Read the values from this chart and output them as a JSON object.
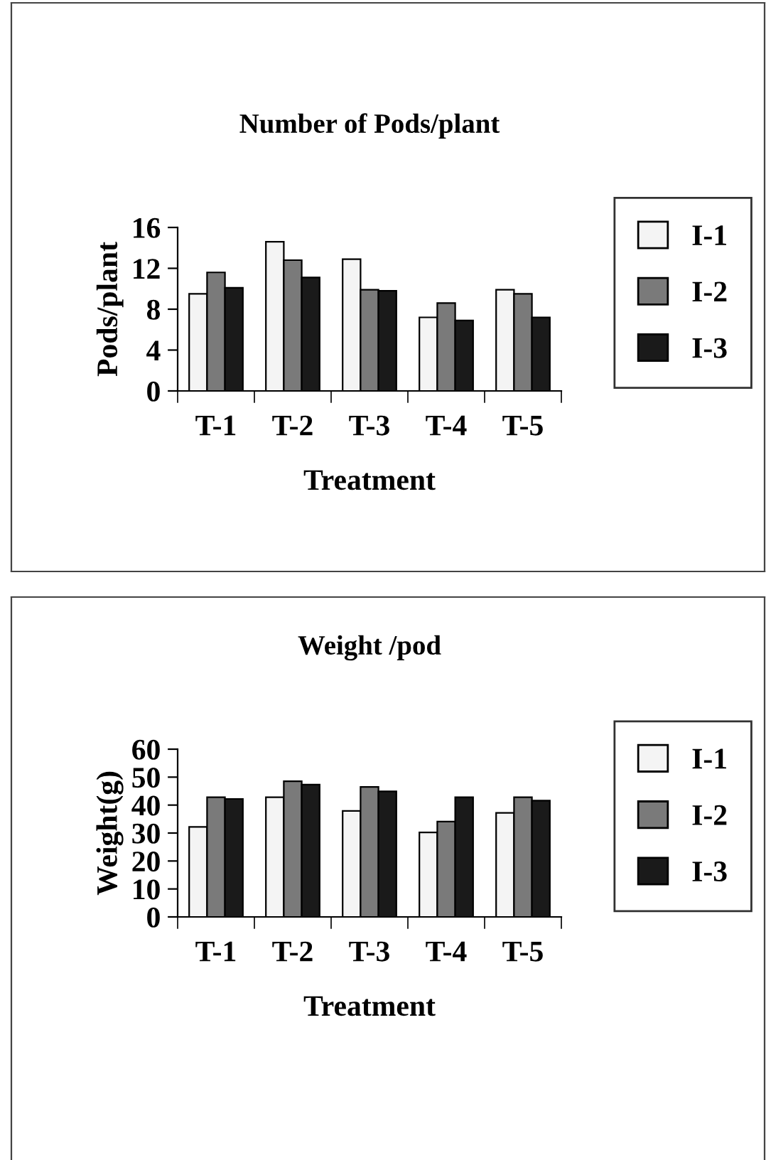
{
  "chart_data": [
    {
      "type": "bar",
      "title": "Number of Pods/plant",
      "xlabel": "Treatment",
      "ylabel": "Pods/plant",
      "categories": [
        "T-1",
        "T-2",
        "T-3",
        "T-4",
        "T-5"
      ],
      "series": [
        {
          "name": "I-1",
          "color": "#f4f4f4",
          "values": [
            9.5,
            14.6,
            12.9,
            7.2,
            9.9
          ]
        },
        {
          "name": "I-2",
          "color": "#7a7a7a",
          "values": [
            11.6,
            12.8,
            9.9,
            8.6,
            9.5
          ]
        },
        {
          "name": "I-3",
          "color": "#1a1a1a",
          "values": [
            10.1,
            11.1,
            9.8,
            6.9,
            7.2
          ]
        }
      ],
      "ylim": [
        0,
        16
      ],
      "yticks": [
        0,
        4,
        8,
        12,
        16
      ],
      "grid": false,
      "legend": "right"
    },
    {
      "type": "bar",
      "title": "Weight /pod",
      "xlabel": "Treatment",
      "ylabel": "Weight(g)",
      "categories": [
        "T-1",
        "T-2",
        "T-3",
        "T-4",
        "T-5"
      ],
      "series": [
        {
          "name": "I-1",
          "color": "#f4f4f4",
          "values": [
            32.2,
            42.8,
            37.9,
            30.2,
            37.2
          ]
        },
        {
          "name": "I-2",
          "color": "#7a7a7a",
          "values": [
            42.8,
            48.5,
            46.5,
            34.1,
            42.8
          ]
        },
        {
          "name": "I-3",
          "color": "#1a1a1a",
          "values": [
            42.2,
            47.3,
            44.9,
            42.8,
            41.6
          ]
        }
      ],
      "ylim": [
        0,
        60
      ],
      "yticks": [
        0,
        10,
        20,
        30,
        40,
        50,
        60
      ],
      "grid": false,
      "legend": "right"
    }
  ]
}
